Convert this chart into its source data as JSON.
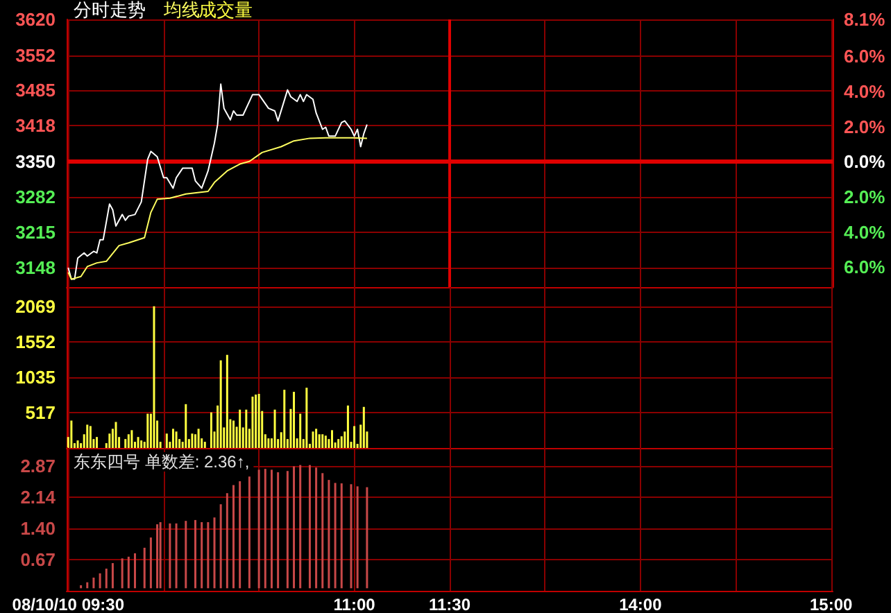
{
  "chart_data": [
    {
      "type": "line",
      "legend": "top left",
      "grid": true,
      "tick_labels": "y",
      "categories": [
        "08/10/10 09:30",
        null,
        null,
        null,
        null,
        null,
        null,
        null,
        null,
        null,
        null,
        null,
        null,
        null,
        null,
        null,
        null,
        null,
        null,
        null,
        null,
        null,
        null,
        null,
        null,
        null,
        null,
        null,
        null,
        null,
        null,
        null,
        null,
        null,
        null,
        null,
        null,
        null,
        null,
        null,
        null,
        null,
        null,
        null,
        null,
        null,
        null,
        null,
        null,
        null,
        null,
        null,
        null,
        null,
        null,
        null,
        null,
        null,
        null,
        null,
        null,
        null,
        null,
        null,
        null,
        null,
        null,
        null,
        null,
        null,
        null,
        null,
        null,
        null,
        null,
        null,
        null,
        null,
        null,
        null,
        null,
        null,
        null,
        null,
        null,
        null,
        null,
        null,
        null,
        null,
        "11:00",
        null,
        null,
        null,
        null,
        null,
        null,
        null,
        null,
        null,
        null,
        null,
        null,
        null,
        null,
        null,
        null,
        null,
        null,
        null,
        null,
        null,
        null,
        null,
        null,
        null,
        null,
        null,
        null,
        null,
        "11:30",
        null,
        null,
        null,
        null,
        null,
        null,
        null,
        null,
        null,
        null,
        null,
        null,
        null,
        null,
        null,
        null,
        null,
        null,
        null,
        null,
        null,
        null,
        null,
        null,
        null,
        null,
        null,
        null,
        null,
        null,
        null,
        null,
        null,
        null,
        null,
        null,
        null,
        null,
        null,
        null,
        null,
        null,
        null,
        null,
        null,
        null,
        null,
        null,
        null,
        null,
        null,
        null,
        null,
        null,
        null,
        null,
        null,
        null,
        null,
        "14:00",
        null,
        null,
        null,
        null,
        null,
        null,
        null,
        null,
        null,
        null,
        null,
        null,
        null,
        null,
        null,
        null,
        null,
        null,
        null,
        null,
        null,
        null,
        null,
        null,
        null,
        null,
        null,
        null,
        null,
        null,
        null,
        null,
        null,
        null,
        null,
        null,
        null,
        null,
        null,
        null,
        null,
        null,
        null,
        null,
        null,
        null,
        null,
        null,
        null,
        null,
        null,
        null,
        null,
        null,
        null,
        null,
        null,
        null,
        null,
        "15:00"
      ],
      "ylim": [
        3111,
        3620
      ],
      "yticks": [
        3148,
        3215,
        3282,
        3350,
        3418,
        3485,
        3552,
        3620
      ],
      "y2lim": [
        -7.13,
        8.1
      ],
      "y2ticks": [
        {
          "value": -6,
          "label": "6.0%"
        },
        {
          "value": -4,
          "label": "4.0%"
        },
        {
          "value": -2,
          "label": "2.0%"
        },
        {
          "value": 0,
          "label": "0.0%"
        },
        {
          "value": 2,
          "label": "2.0%"
        },
        {
          "value": 4,
          "label": "4.0%"
        },
        {
          "value": 6,
          "label": "6.0%"
        },
        {
          "value": 8.1,
          "label": "8.1%"
        }
      ],
      "ref_lines": [
        {
          "axis": "y",
          "value": 3350,
          "color": "#e00000"
        },
        {
          "axis": "x",
          "value": "11:30",
          "color": "#e00000"
        }
      ],
      "series": [
        {
          "name": "分时走势",
          "color": "#ffffff",
          "values": [
            3148,
            3126,
            3126,
            3166,
            null,
            3176,
            3170,
            null,
            3179,
            3176,
            3201,
            3201,
            null,
            3269,
            3258,
            3227,
            null,
            3249,
            3238,
            3246,
            null,
            3249,
            null,
            3273,
            null,
            3354,
            3369,
            null,
            3359,
            null,
            3319,
            3319,
            null,
            3299,
            3319,
            null,
            3337,
            null,
            null,
            3337,
            3313,
            null,
            3299,
            null,
            3332,
            null,
            3385,
            3420,
            3497,
            3451,
            null,
            3429,
            3446,
            3438,
            null,
            3438,
            null,
            null,
            3477,
            null,
            3477,
            null,
            null,
            3451,
            null,
            3446,
            3427,
            null,
            null,
            3486,
            3473,
            null,
            3464,
            3477,
            3464,
            3477,
            null,
            3468,
            3442,
            null,
            3411,
            3415,
            3398,
            null,
            3398,
            null,
            3424,
            3427,
            null,
            3411,
            3398,
            3411,
            3378,
            3403,
            3420,
            null,
            null,
            null,
            null,
            null,
            null,
            null,
            null,
            null,
            null,
            null,
            null,
            null,
            null,
            null,
            null,
            null,
            null,
            null,
            null,
            null,
            null,
            null,
            null,
            null,
            null,
            null,
            null,
            null,
            null,
            null,
            null,
            null,
            null,
            null,
            null,
            null,
            null,
            null,
            null,
            null,
            null,
            null,
            null,
            null,
            null,
            null,
            null,
            null,
            null,
            null,
            null,
            null,
            null,
            null,
            null,
            null,
            null,
            null,
            null,
            null,
            null,
            null,
            null,
            null,
            null,
            null,
            null,
            null,
            null,
            null,
            null,
            null,
            null,
            null,
            null,
            null,
            null,
            null,
            null,
            null,
            null,
            null,
            null,
            null,
            null,
            null,
            null,
            null,
            null,
            null,
            null,
            null,
            null,
            null,
            null,
            null,
            null,
            null,
            null,
            null,
            null,
            null,
            null,
            null,
            null,
            null,
            null,
            null,
            null,
            null,
            null,
            null,
            null,
            null,
            null,
            null,
            null,
            null,
            null,
            null,
            null,
            null,
            null,
            null,
            null,
            null,
            null,
            null,
            null,
            null,
            null,
            null,
            null,
            null,
            null,
            null,
            null,
            null,
            null,
            null,
            null,
            null,
            null,
            null,
            null
          ]
        },
        {
          "name": "均线",
          "color": "#ffff60",
          "values": [
            3139,
            3126,
            null,
            null,
            3131,
            null,
            3150,
            null,
            null,
            3157,
            null,
            null,
            3160,
            null,
            null,
            null,
            3190,
            null,
            null,
            3195,
            null,
            null,
            null,
            null,
            3205,
            null,
            3253,
            null,
            3278,
            null,
            null,
            null,
            3280,
            null,
            null,
            null,
            null,
            3288,
            null,
            null,
            null,
            null,
            null,
            null,
            3293,
            null,
            3310,
            null,
            null,
            null,
            3332,
            null,
            null,
            null,
            3345,
            null,
            null,
            3350,
            null,
            null,
            null,
            3367,
            null,
            null,
            null,
            null,
            null,
            3378,
            null,
            null,
            null,
            3389,
            null,
            null,
            null,
            null,
            3394,
            null,
            null,
            null,
            null,
            3395,
            null,
            null,
            null,
            null,
            null,
            null,
            null,
            3395,
            null,
            null,
            null,
            null,
            3394,
            null,
            null,
            null,
            null,
            null,
            null,
            null,
            null,
            null,
            null,
            null,
            null,
            null,
            null,
            null,
            null,
            null,
            null,
            null,
            null,
            null,
            null,
            null,
            null,
            null,
            null,
            null,
            null,
            null,
            null,
            null,
            null,
            null,
            null,
            null,
            null,
            null,
            null,
            null,
            null,
            null,
            null,
            null,
            null,
            null,
            null,
            null,
            null,
            null,
            null,
            null,
            null,
            null,
            null,
            null,
            null,
            null,
            null,
            null,
            null,
            null,
            null,
            null,
            null,
            null,
            null,
            null,
            null,
            null,
            null,
            null,
            null,
            null,
            null,
            null,
            null,
            null,
            null,
            null,
            null,
            null,
            null,
            null,
            null,
            null,
            null,
            null,
            null,
            null,
            null,
            null,
            null,
            null,
            null,
            null,
            null,
            null,
            null,
            null,
            null,
            null,
            null,
            null,
            null,
            null,
            null,
            null,
            null,
            null,
            null,
            null,
            null,
            null,
            null,
            null,
            null,
            null,
            null,
            null,
            null,
            null,
            null,
            null,
            null,
            null,
            null,
            null,
            null,
            null,
            null,
            null,
            null,
            null,
            null,
            null,
            null,
            null,
            null,
            null,
            null,
            null,
            null,
            null,
            null,
            null,
            null
          ]
        }
      ]
    },
    {
      "type": "bar",
      "legend": "top left",
      "grid": true,
      "tick_labels": "y",
      "categories": [
        "08/10/10 09:30",
        null,
        null,
        null,
        null,
        null,
        null,
        null,
        null,
        null,
        null,
        null,
        null,
        null,
        null,
        null,
        null,
        null,
        null,
        null,
        null,
        null,
        null,
        null,
        null,
        null,
        null,
        null,
        null,
        null,
        null,
        null,
        null,
        null,
        null,
        null,
        null,
        null,
        null,
        null,
        null,
        null,
        null,
        null,
        null,
        null,
        null,
        null,
        null,
        null,
        null,
        null,
        null,
        null,
        null,
        null,
        null,
        null,
        null,
        null,
        null,
        null,
        null,
        null,
        null,
        null,
        null,
        null,
        null,
        null,
        null,
        null,
        null,
        null,
        null,
        null,
        null,
        null,
        null,
        null,
        null,
        null,
        null,
        null,
        null,
        null,
        null,
        null,
        null,
        null,
        "11:00",
        null,
        null,
        null,
        null,
        null,
        null,
        null,
        null,
        null,
        null,
        null,
        null,
        null,
        null,
        null,
        null,
        null,
        null,
        null,
        null,
        null,
        null,
        null,
        null,
        null,
        null,
        null,
        null,
        null,
        "11:30",
        null,
        null,
        null,
        null,
        null,
        null,
        null,
        null,
        null,
        null,
        null,
        null,
        null,
        null,
        null,
        null,
        null,
        null,
        null,
        null,
        null,
        null,
        null,
        null,
        null,
        null,
        null,
        null,
        null,
        null,
        null,
        null,
        null,
        null,
        null,
        null,
        null,
        null,
        null,
        null,
        null,
        null,
        null,
        null,
        null,
        null,
        null,
        null,
        null,
        null,
        null,
        null,
        null,
        null,
        null,
        null,
        null,
        null,
        null,
        "14:00",
        null,
        null,
        null,
        null,
        null,
        null,
        null,
        null,
        null,
        null,
        null,
        null,
        null,
        null,
        null,
        null,
        null,
        null,
        null,
        null,
        null,
        null,
        null,
        null,
        null,
        null,
        null,
        null,
        null,
        null,
        null,
        null,
        null,
        null,
        null,
        null,
        null,
        null,
        null,
        null,
        null,
        null,
        null,
        null,
        null,
        null,
        null,
        null,
        null,
        null,
        null,
        null,
        null,
        null,
        null,
        null,
        null,
        null,
        null,
        "15:00"
      ],
      "ylim": [
        0,
        2350
      ],
      "yticks": [
        517,
        1035,
        1552,
        2069
      ],
      "series": [
        {
          "name": "成交量",
          "color": "#ffff40",
          "values": [
            160,
            400,
            70,
            110,
            70,
            200,
            340,
            320,
            130,
            160,
            null,
            null,
            70,
            210,
            280,
            380,
            160,
            null,
            130,
            200,
            260,
            90,
            160,
            110,
            90,
            500,
            500,
            2070,
            400,
            90,
            null,
            210,
            90,
            280,
            240,
            130,
            90,
            640,
            130,
            210,
            200,
            280,
            140,
            90,
            null,
            520,
            240,
            620,
            1280,
            300,
            1360,
            420,
            400,
            310,
            560,
            300,
            560,
            280,
            750,
            780,
            790,
            540,
            200,
            140,
            140,
            560,
            130,
            230,
            850,
            130,
            570,
            820,
            140,
            500,
            130,
            880,
            60,
            240,
            280,
            200,
            200,
            180,
            130,
            260,
            80,
            130,
            170,
            240,
            620,
            90,
            320,
            60,
            340,
            600,
            240,
            null,
            null,
            null,
            null,
            null,
            null,
            null,
            null,
            null,
            null,
            null,
            null,
            null,
            null,
            null,
            null,
            null,
            null,
            null,
            null,
            null,
            null,
            null,
            null,
            null,
            null,
            null,
            null,
            null,
            null,
            null,
            null,
            null,
            null,
            null,
            null,
            null,
            null,
            null,
            null,
            null,
            null,
            null,
            null,
            null,
            null,
            null,
            null,
            null,
            null,
            null,
            null,
            null,
            null,
            null,
            null,
            null,
            null,
            null,
            null,
            null,
            null,
            null,
            null,
            null,
            null,
            null,
            null,
            null,
            null,
            null,
            null,
            null,
            null,
            null,
            null,
            null,
            null,
            null,
            null,
            null,
            null,
            null,
            null,
            null,
            null,
            null,
            null,
            null,
            null,
            null,
            null,
            null,
            null,
            null,
            null,
            null,
            null,
            null,
            null,
            null,
            null,
            null,
            null,
            null,
            null,
            null,
            null,
            null,
            null,
            null,
            null,
            null,
            null,
            null,
            null,
            null,
            null,
            null,
            null,
            null,
            null,
            null,
            null,
            null,
            null,
            null,
            null,
            null,
            null,
            null,
            null,
            null,
            null,
            null,
            null,
            null,
            null,
            null,
            null,
            null,
            null,
            null,
            null,
            null,
            null
          ]
        }
      ]
    },
    {
      "type": "bar",
      "title": "东东四号 单数差: 2.36↑,",
      "grid": true,
      "categories": [
        "08/10/10 09:30",
        null,
        null,
        null,
        null,
        null,
        null,
        null,
        null,
        null,
        null,
        null,
        null,
        null,
        null,
        null,
        null,
        null,
        null,
        null,
        null,
        null,
        null,
        null,
        null,
        null,
        null,
        null,
        null,
        null,
        null,
        null,
        null,
        null,
        null,
        null,
        null,
        null,
        null,
        null,
        null,
        null,
        null,
        null,
        null,
        null,
        null,
        null,
        null,
        null,
        null,
        null,
        null,
        null,
        null,
        null,
        null,
        null,
        null,
        null,
        null,
        null,
        null,
        null,
        null,
        null,
        null,
        null,
        null,
        null,
        null,
        null,
        null,
        null,
        null,
        null,
        null,
        null,
        null,
        null,
        null,
        null,
        null,
        null,
        null,
        null,
        null,
        null,
        null,
        null,
        "11:00",
        null,
        null,
        null,
        null,
        null,
        null,
        null,
        null,
        null,
        null,
        null,
        null,
        null,
        null,
        null,
        null,
        null,
        null,
        null,
        null,
        null,
        null,
        null,
        null,
        null,
        null,
        null,
        null,
        null,
        "11:30",
        null,
        null,
        null,
        null,
        null,
        null,
        null,
        null,
        null,
        null,
        null,
        null,
        null,
        null,
        null,
        null,
        null,
        null,
        null,
        null,
        null,
        null,
        null,
        null,
        null,
        null,
        null,
        null,
        null,
        null,
        null,
        null,
        null,
        null,
        null,
        null,
        null,
        null,
        null,
        null,
        null,
        null,
        null,
        null,
        null,
        null,
        null,
        null,
        null,
        null,
        null,
        null,
        null,
        null,
        null,
        null,
        null,
        null,
        null,
        "14:00",
        null,
        null,
        null,
        null,
        null,
        null,
        null,
        null,
        null,
        null,
        null,
        null,
        null,
        null,
        null,
        null,
        null,
        null,
        null,
        null,
        null,
        null,
        null,
        null,
        null,
        null,
        null,
        null,
        null,
        null,
        null,
        null,
        null,
        null,
        null,
        null,
        null,
        null,
        null,
        null,
        null,
        null,
        null,
        null,
        null,
        null,
        null,
        null,
        null,
        null,
        null,
        null,
        null,
        null,
        null,
        null,
        null,
        null,
        null,
        "15:00"
      ],
      "ylim": [
        -0.06,
        3.29
      ],
      "yticks": [
        0.67,
        {
          "value": 1.4,
          "label": "1.40"
        },
        2.14,
        2.87
      ],
      "series": [
        {
          "color": "#c84848",
          "values": [
            null,
            null,
            null,
            null,
            0.07,
            null,
            0.14,
            null,
            0.25,
            null,
            0.35,
            null,
            0.46,
            null,
            0.59,
            null,
            null,
            0.7,
            null,
            0.74,
            null,
            0.82,
            null,
            null,
            0.95,
            null,
            1.19,
            null,
            1.5,
            1.55,
            null,
            null,
            1.52,
            null,
            1.52,
            null,
            null,
            1.58,
            null,
            null,
            1.6,
            null,
            1.55,
            null,
            1.55,
            null,
            1.66,
            null,
            1.97,
            null,
            2.23,
            null,
            2.42,
            null,
            2.51,
            null,
            null,
            2.62,
            null,
            null,
            2.78,
            null,
            2.8,
            null,
            2.78,
            null,
            2.72,
            null,
            null,
            2.75,
            null,
            2.86,
            null,
            2.89,
            null,
            null,
            2.89,
            null,
            2.83,
            null,
            2.7,
            null,
            2.54,
            null,
            2.47,
            null,
            2.46,
            null,
            null,
            2.44,
            null,
            2.39,
            null,
            null,
            2.37,
            null,
            null,
            null,
            null,
            null,
            null,
            null,
            null,
            null,
            null,
            null,
            null,
            null,
            null,
            null,
            null,
            null,
            null,
            null,
            null,
            null,
            null,
            null,
            null,
            null,
            null,
            null,
            null,
            null,
            null,
            null,
            null,
            null,
            null,
            null,
            null,
            null,
            null,
            null,
            null,
            null,
            null,
            null,
            null,
            null,
            null,
            null,
            null,
            null,
            null,
            null,
            null,
            null,
            null,
            null,
            null,
            null,
            null,
            null,
            null,
            null,
            null,
            null,
            null,
            null,
            null,
            null,
            null,
            null,
            null,
            null,
            null,
            null,
            null,
            null,
            null,
            null,
            null,
            null,
            null,
            null,
            null,
            null,
            null,
            null,
            null,
            null,
            null,
            null,
            null,
            null,
            null,
            null,
            null,
            null,
            null,
            null,
            null,
            null,
            null,
            null,
            null,
            null,
            null,
            null,
            null,
            null,
            null,
            null,
            null,
            null,
            null,
            null,
            null,
            null,
            null,
            null,
            null,
            null,
            null,
            null,
            null,
            null,
            null,
            null,
            null,
            null,
            null,
            null,
            null,
            null,
            null,
            null,
            null,
            null,
            null,
            null,
            null,
            null,
            null,
            null,
            null,
            null,
            null,
            null,
            null
          ]
        }
      ]
    }
  ]
}
